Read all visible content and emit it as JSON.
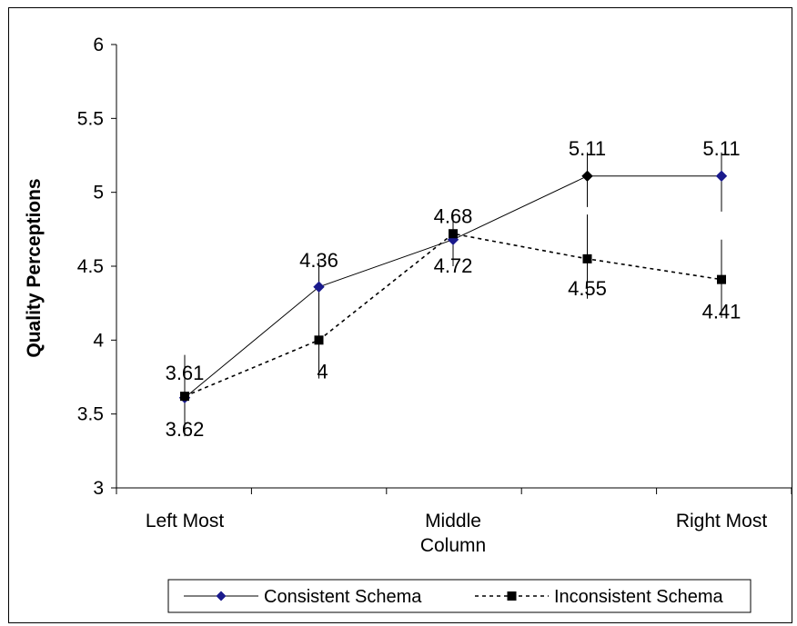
{
  "chart_data": {
    "type": "line",
    "title": "",
    "xlabel": "",
    "ylabel": "Quality Perceptions",
    "ylim": [
      3,
      6
    ],
    "y_ticks": [
      "3",
      "3.5",
      "4",
      "4.5",
      "5",
      "5.5",
      "6"
    ],
    "x_points": 5,
    "category_labels": [
      {
        "position": 1,
        "lines": [
          "Left Most"
        ]
      },
      {
        "position": 3,
        "lines": [
          "Middle",
          "Column"
        ]
      },
      {
        "position": 5,
        "lines": [
          "Right Most"
        ]
      }
    ],
    "series": [
      {
        "name": "Consistent Schema",
        "values": [
          3.61,
          4.36,
          4.68,
          5.11,
          5.11
        ],
        "labels": [
          "3.61",
          "4.36",
          "4.68",
          "5.11",
          "5.11"
        ],
        "error_low": [
          3.4,
          4.1,
          4.5,
          4.9,
          4.87
        ],
        "error_high": [
          3.85,
          4.55,
          4.8,
          5.27,
          5.27
        ],
        "color": "#000000",
        "marker": "diamond",
        "marker_colors": [
          "#1a1a8c",
          "#1a1a8c",
          "#1a1a8c",
          "#000000",
          "#1a1a8c"
        ],
        "line_style": "solid"
      },
      {
        "name": "Inconsistent Schema",
        "values": [
          3.62,
          4.0,
          4.72,
          4.55,
          4.41
        ],
        "labels": [
          "3.62",
          "4",
          "4.72",
          "4.55",
          "4.41"
        ],
        "error_low": [
          3.35,
          3.74,
          4.58,
          4.28,
          4.15
        ],
        "error_high": [
          3.9,
          4.25,
          4.85,
          4.85,
          4.68
        ],
        "color": "#000000",
        "marker": "square",
        "marker_colors": [
          "#000000",
          "#000000",
          "#000000",
          "#000000",
          "#000000"
        ],
        "line_style": "dashed"
      }
    ],
    "legend_position": "bottom",
    "grid": false
  }
}
